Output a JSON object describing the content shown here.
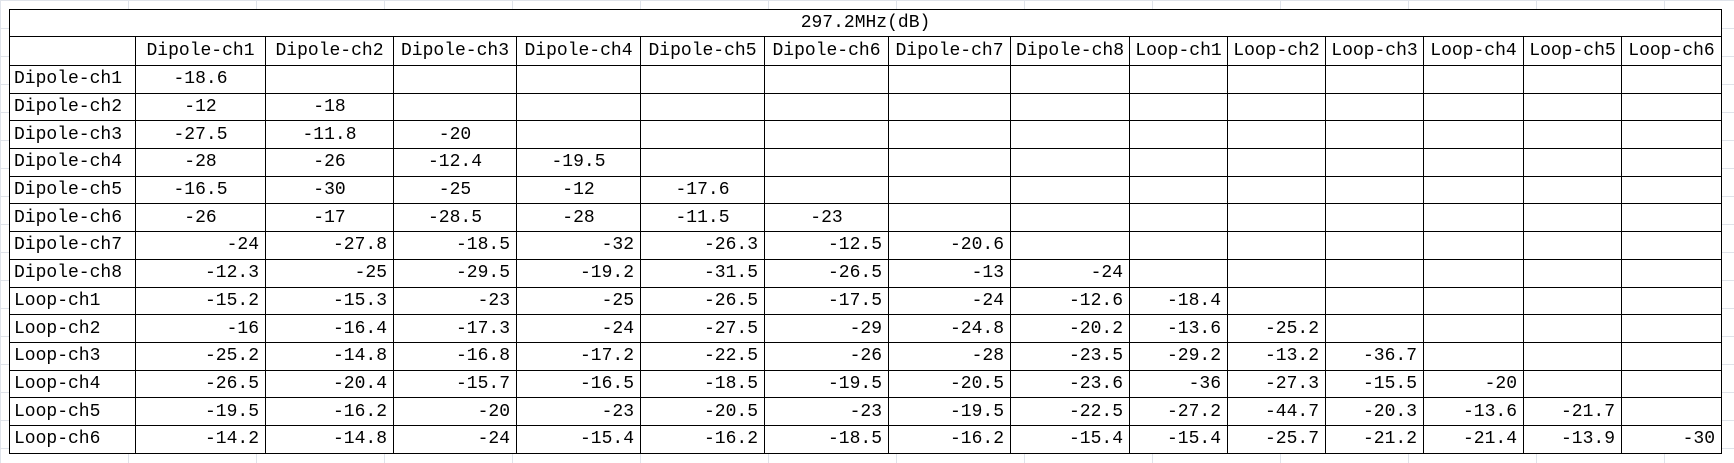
{
  "title": "297.2MHz(dB)",
  "columns": [
    "Dipole-ch1",
    "Dipole-ch2",
    "Dipole-ch3",
    "Dipole-ch4",
    "Dipole-ch5",
    "Dipole-ch6",
    "Dipole-ch7",
    "Dipole-ch8",
    "Loop-ch1",
    "Loop-ch2",
    "Loop-ch3",
    "Loop-ch4",
    "Loop-ch5",
    "Loop-ch6"
  ],
  "rows": [
    {
      "label": "Dipole-ch1",
      "values": [
        "-18.6"
      ]
    },
    {
      "label": "Dipole-ch2",
      "values": [
        "-12",
        "-18"
      ]
    },
    {
      "label": "Dipole-ch3",
      "values": [
        "-27.5",
        "-11.8",
        "-20"
      ]
    },
    {
      "label": "Dipole-ch4",
      "values": [
        "-28",
        "-26",
        "-12.4",
        "-19.5"
      ]
    },
    {
      "label": "Dipole-ch5",
      "values": [
        "-16.5",
        "-30",
        "-25",
        "-12",
        "-17.6"
      ]
    },
    {
      "label": "Dipole-ch6",
      "values": [
        "-26",
        "-17",
        "-28.5",
        "-28",
        "-11.5",
        "-23"
      ]
    },
    {
      "label": "Dipole-ch7",
      "values": [
        "-24",
        "-27.8",
        "-18.5",
        "-32",
        "-26.3",
        "-12.5",
        "-20.6"
      ]
    },
    {
      "label": "Dipole-ch8",
      "values": [
        "-12.3",
        "-25",
        "-29.5",
        "-19.2",
        "-31.5",
        "-26.5",
        "-13",
        "-24"
      ]
    },
    {
      "label": "Loop-ch1",
      "values": [
        "-15.2",
        "-15.3",
        "-23",
        "-25",
        "-26.5",
        "-17.5",
        "-24",
        "-12.6",
        "-18.4"
      ]
    },
    {
      "label": "Loop-ch2",
      "values": [
        "-16",
        "-16.4",
        "-17.3",
        "-24",
        "-27.5",
        "-29",
        "-24.8",
        "-20.2",
        "-13.6",
        "-25.2"
      ]
    },
    {
      "label": "Loop-ch3",
      "values": [
        "-25.2",
        "-14.8",
        "-16.8",
        "-17.2",
        "-22.5",
        "-26",
        "-28",
        "-23.5",
        "-29.2",
        "-13.2",
        "-36.7"
      ]
    },
    {
      "label": "Loop-ch4",
      "values": [
        "-26.5",
        "-20.4",
        "-15.7",
        "-16.5",
        "-18.5",
        "-19.5",
        "-20.5",
        "-23.6",
        "-36",
        "-27.3",
        "-15.5",
        "-20"
      ]
    },
    {
      "label": "Loop-ch5",
      "values": [
        "-19.5",
        "-16.2",
        "-20",
        "-23",
        "-20.5",
        "-23",
        "-19.5",
        "-22.5",
        "-27.2",
        "-44.7",
        "-20.3",
        "-13.6",
        "-21.7"
      ]
    },
    {
      "label": "Loop-ch6",
      "values": [
        "-14.2",
        "-14.8",
        "-24",
        "-15.4",
        "-16.2",
        "-18.5",
        "-16.2",
        "-15.4",
        "-15.4",
        "-25.7",
        "-21.2",
        "-21.4",
        "-13.9",
        "-30"
      ]
    }
  ]
}
